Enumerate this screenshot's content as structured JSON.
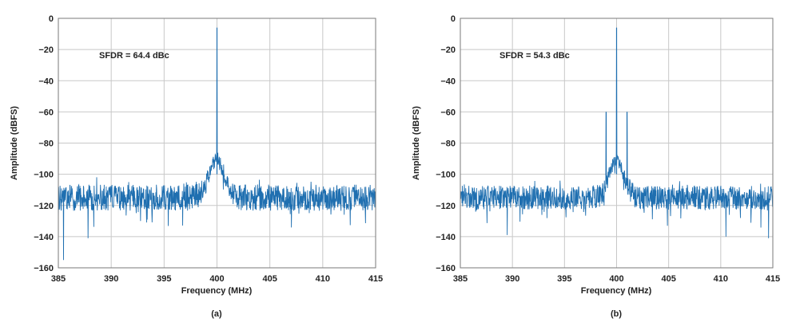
{
  "chart_data": [
    {
      "type": "line",
      "panel_label": "(a)",
      "xlabel": "Frequency (MHz)",
      "ylabel": "Amplitude (dBFS)",
      "xlim": [
        385,
        415
      ],
      "ylim": [
        -160,
        0
      ],
      "xticks": [
        385,
        390,
        395,
        400,
        405,
        410,
        415
      ],
      "yticks": [
        0,
        -20,
        -40,
        -60,
        -80,
        -100,
        -120,
        -140,
        -160
      ],
      "grid": true,
      "annotation": "SFDR = 64.4 dBc",
      "line_color": "#1f6fb0",
      "noise_floor_dbfs": -115,
      "noise_spread_db": 12,
      "skirt": {
        "center_mhz": 400,
        "peak_dbfs": -90,
        "width_mhz": 1.0
      },
      "peaks": [
        {
          "x": 400.0,
          "y": -6
        }
      ],
      "dips": [
        {
          "x": 385.5,
          "y": -155
        },
        {
          "x": 387.8,
          "y": -141
        }
      ]
    },
    {
      "type": "line",
      "panel_label": "(b)",
      "xlabel": "Frequency (MHz)",
      "ylabel": "Amplitude (dBFS)",
      "xlim": [
        385,
        415
      ],
      "ylim": [
        -160,
        0
      ],
      "xticks": [
        385,
        390,
        395,
        400,
        405,
        410,
        415
      ],
      "yticks": [
        0,
        -20,
        -40,
        -60,
        -80,
        -100,
        -120,
        -140,
        -160
      ],
      "grid": true,
      "annotation": "SFDR = 54.3 dBc",
      "line_color": "#1f6fb0",
      "noise_floor_dbfs": -115,
      "noise_spread_db": 11,
      "skirt": {
        "center_mhz": 400,
        "peak_dbfs": -91,
        "width_mhz": 1.0
      },
      "peaks": [
        {
          "x": 400.0,
          "y": -6
        },
        {
          "x": 399.0,
          "y": -60
        },
        {
          "x": 401.0,
          "y": -60
        }
      ],
      "dips": [
        {
          "x": 389.5,
          "y": -139
        },
        {
          "x": 410.5,
          "y": -140
        },
        {
          "x": 414.6,
          "y": -141
        }
      ]
    }
  ]
}
